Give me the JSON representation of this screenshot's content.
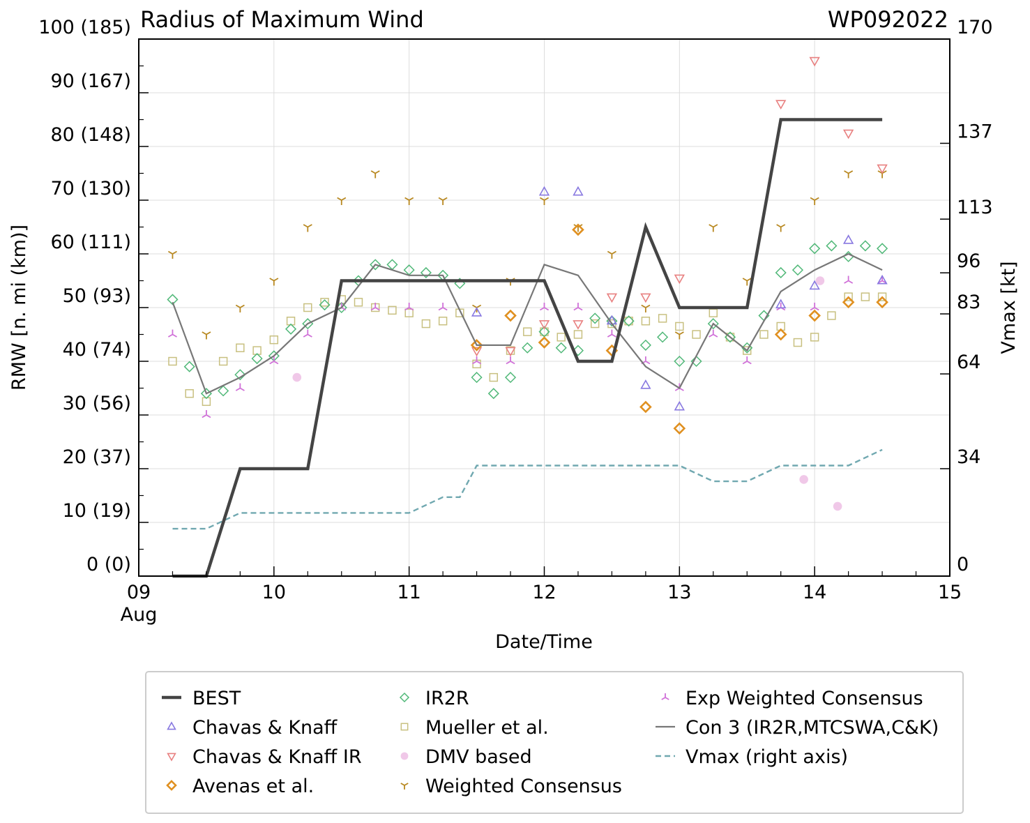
{
  "chart_data": {
    "type": "line",
    "title": "Radius of Maximum Wind",
    "storm_id": "WP092022",
    "xlabel": "Date/Time",
    "ylabel": "RMW [n. mi (km)]",
    "ylabel_right": "Vmax [kt]",
    "xlim": [
      9.0,
      15.0
    ],
    "ylim": [
      0,
      100
    ],
    "ylim_right": [
      0,
      170
    ],
    "x_ticks": [
      {
        "value": 9,
        "label": "09",
        "sublabel": "Aug"
      },
      {
        "value": 10,
        "label": "10",
        "sublabel": ""
      },
      {
        "value": 11,
        "label": "11",
        "sublabel": ""
      },
      {
        "value": 12,
        "label": "12",
        "sublabel": ""
      },
      {
        "value": 13,
        "label": "13",
        "sublabel": ""
      },
      {
        "value": 14,
        "label": "14",
        "sublabel": ""
      },
      {
        "value": 15,
        "label": "15",
        "sublabel": ""
      }
    ],
    "y_ticks": [
      {
        "value": 0,
        "label": "0 (0)"
      },
      {
        "value": 10,
        "label": "10 (19)"
      },
      {
        "value": 20,
        "label": "20 (37)"
      },
      {
        "value": 30,
        "label": "30 (56)"
      },
      {
        "value": 40,
        "label": "40 (74)"
      },
      {
        "value": 50,
        "label": "50 (93)"
      },
      {
        "value": 60,
        "label": "60 (111)"
      },
      {
        "value": 70,
        "label": "70 (130)"
      },
      {
        "value": 80,
        "label": "80 (148)"
      },
      {
        "value": 90,
        "label": "90 (167)"
      },
      {
        "value": 100,
        "label": "100 (185)"
      }
    ],
    "y_right_ticks": [
      {
        "value": 0,
        "label": "0"
      },
      {
        "value": 34,
        "label": "34"
      },
      {
        "value": 64,
        "label": "64"
      },
      {
        "value": 83,
        "label": "83"
      },
      {
        "value": 96,
        "label": "96"
      },
      {
        "value": 113,
        "label": "113"
      },
      {
        "value": 137,
        "label": "137"
      },
      {
        "value": 170,
        "label": "170"
      }
    ],
    "series": [
      {
        "name": "BEST",
        "style": "line",
        "color": "#444444",
        "x": [
          9.25,
          9.5,
          9.75,
          10.0,
          10.25,
          10.5,
          10.75,
          11.0,
          11.25,
          11.5,
          11.75,
          12.0,
          12.25,
          12.5,
          12.75,
          13.0,
          13.25,
          13.5,
          13.75,
          14.0,
          14.25,
          14.5
        ],
        "y": [
          0,
          0,
          20,
          20,
          20,
          55,
          55,
          55,
          55,
          55,
          55,
          55,
          40,
          40,
          65,
          50,
          50,
          50,
          85,
          85,
          85,
          85
        ]
      },
      {
        "name": "Chavas & Knaff",
        "style": "marker",
        "marker": "triangle-up",
        "color": "#8878e0",
        "x": [
          11.5,
          12.0,
          12.25,
          12.5,
          12.75,
          13.0,
          13.75,
          14.0,
          14.25,
          14.5
        ],
        "y": [
          49,
          71.5,
          71.5,
          47.5,
          35.5,
          31.5,
          50.5,
          54,
          62.5,
          55
        ]
      },
      {
        "name": "Chavas & Knaff IR",
        "style": "marker",
        "marker": "triangle-down",
        "color": "#e88080",
        "x": [
          11.5,
          11.75,
          12.0,
          12.25,
          12.5,
          12.75,
          13.0,
          13.75,
          14.0,
          14.25,
          14.5
        ],
        "y": [
          42,
          42,
          47,
          47,
          52,
          52,
          55.5,
          88,
          96,
          82.5,
          76
        ]
      },
      {
        "name": "Avenas et al.",
        "style": "marker",
        "marker": "diamond",
        "color": "#e09020",
        "x": [
          11.5,
          11.75,
          12.0,
          12.25,
          12.5,
          12.75,
          13.0,
          13.75,
          14.0,
          14.25,
          14.5
        ],
        "y": [
          43,
          48.5,
          43.5,
          64.5,
          42,
          31.5,
          27.5,
          45,
          48.5,
          51,
          51
        ]
      },
      {
        "name": "IR2R",
        "style": "marker",
        "marker": "diamond-open",
        "color": "#50b878",
        "x": [
          9.25,
          9.375,
          9.5,
          9.625,
          9.75,
          9.875,
          10.0,
          10.125,
          10.25,
          10.375,
          10.5,
          10.625,
          10.75,
          10.875,
          11.0,
          11.125,
          11.25,
          11.375,
          11.5,
          11.625,
          11.75,
          11.875,
          12.0,
          12.125,
          12.25,
          12.375,
          12.5,
          12.625,
          12.75,
          12.875,
          13.0,
          13.125,
          13.25,
          13.375,
          13.5,
          13.625,
          13.75,
          13.875,
          14.0,
          14.125,
          14.25,
          14.375,
          14.5
        ],
        "y": [
          51.5,
          39,
          34,
          34.5,
          37.5,
          40.5,
          41,
          46,
          47,
          50.5,
          50,
          55,
          58,
          58,
          57,
          56.5,
          56,
          54.5,
          37,
          34,
          37,
          42.5,
          45.5,
          42.5,
          42,
          48,
          47.5,
          47.5,
          43,
          44.5,
          40,
          40,
          47,
          44.5,
          42.5,
          48.5,
          56.5,
          57,
          61,
          61.5,
          59.5,
          61.5,
          61
        ]
      },
      {
        "name": "Mueller et al.",
        "style": "marker",
        "marker": "square-open",
        "color": "#c8c080",
        "x": [
          9.25,
          9.375,
          9.5,
          9.625,
          9.75,
          9.875,
          10.0,
          10.125,
          10.25,
          10.375,
          10.5,
          10.625,
          10.75,
          10.875,
          11.0,
          11.125,
          11.25,
          11.375,
          11.5,
          11.625,
          11.75,
          11.875,
          12.0,
          12.125,
          12.25,
          12.375,
          12.5,
          12.625,
          12.75,
          12.875,
          13.0,
          13.125,
          13.25,
          13.375,
          13.5,
          13.625,
          13.75,
          13.875,
          14.0,
          14.125,
          14.25,
          14.375,
          14.5
        ],
        "y": [
          40,
          34,
          32.5,
          40,
          42.5,
          42,
          44,
          47.5,
          50,
          51,
          51.5,
          51,
          50,
          49.5,
          49,
          47,
          47.5,
          49,
          39.5,
          37,
          42,
          45.5,
          45.5,
          44.5,
          45,
          47,
          47,
          47.5,
          47.5,
          48,
          46.5,
          45,
          49,
          44.5,
          42,
          45,
          46.5,
          43.5,
          44.5,
          48.5,
          52,
          52,
          52
        ]
      },
      {
        "name": "DMV based",
        "style": "marker",
        "marker": "circle",
        "color": "#f0c8e8",
        "x": [
          10.17,
          13.92,
          14.04,
          14.17
        ],
        "y": [
          37,
          18,
          55,
          13
        ]
      },
      {
        "name": "Weighted Consensus",
        "style": "marker",
        "marker": "tri-down",
        "color": "#b88820",
        "x": [
          9.25,
          9.5,
          9.75,
          10.0,
          10.25,
          10.5,
          10.75,
          11.0,
          11.25,
          11.5,
          11.75,
          12.0,
          12.25,
          12.5,
          12.75,
          13.0,
          13.25,
          13.5,
          13.75,
          14.0,
          14.25,
          14.5
        ],
        "y": [
          60,
          45,
          50,
          55,
          65,
          70,
          75,
          70,
          70,
          50,
          55,
          70,
          65,
          60,
          50,
          45,
          65,
          55,
          65,
          70,
          75,
          75
        ]
      },
      {
        "name": "Exp Weighted Consensus",
        "style": "marker",
        "marker": "tri-up",
        "color": "#d070d8",
        "x": [
          9.25,
          9.5,
          9.75,
          10.0,
          10.25,
          10.5,
          10.75,
          11.0,
          11.25,
          11.5,
          11.75,
          12.0,
          12.25,
          12.5,
          12.75,
          13.0,
          13.25,
          13.5,
          13.75,
          14.0,
          14.25,
          14.5
        ],
        "y": [
          45,
          30,
          35,
          40,
          45,
          50,
          50,
          50,
          50,
          40,
          40,
          50,
          50,
          45,
          40,
          35,
          45,
          40,
          50,
          50,
          55,
          55
        ]
      },
      {
        "name": "Con 3 (IR2R,MTCSWA,C&K)",
        "style": "line",
        "color": "#777777",
        "x": [
          9.25,
          9.5,
          9.75,
          10.0,
          10.25,
          10.5,
          10.75,
          11.0,
          11.25,
          11.5,
          11.75,
          12.0,
          12.25,
          12.5,
          12.75,
          13.0,
          13.25,
          13.5,
          13.75,
          14.0,
          14.25,
          14.5
        ],
        "y": [
          51,
          34,
          37,
          41,
          47,
          50,
          58,
          56,
          56,
          43,
          43,
          58,
          56,
          47,
          39,
          35,
          47,
          42,
          53,
          57,
          60,
          57
        ]
      },
      {
        "name": "Vmax (right axis)",
        "style": "dashed",
        "axis": "right",
        "color": "#70a8b0",
        "x": [
          9.25,
          9.5,
          9.75,
          10.0,
          10.25,
          10.5,
          10.75,
          11.0,
          11.25,
          11.375,
          11.5,
          11.75,
          12.0,
          12.25,
          12.5,
          12.75,
          13.0,
          13.25,
          13.5,
          13.75,
          14.0,
          14.25,
          14.5
        ],
        "y": [
          15,
          15,
          20,
          20,
          20,
          20,
          20,
          20,
          25,
          25,
          35,
          35,
          35,
          35,
          35,
          35,
          35,
          30,
          30,
          35,
          35,
          35,
          40
        ]
      }
    ]
  }
}
